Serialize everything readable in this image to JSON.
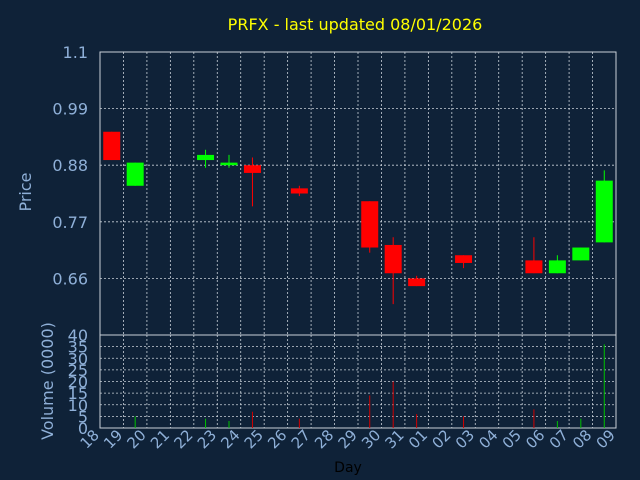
{
  "colors": {
    "background": "#0f2238",
    "title": "#ffff00",
    "axis_text": "#8fb0d8",
    "x_label": "#000000",
    "grid": "#c8d0d8",
    "up": "#00ff00",
    "down": "#ff0000",
    "volume_up": "#00c000",
    "volume_down": "#d00000"
  },
  "chart_data": {
    "type": "candlestick",
    "title": "PRFX - last updated 08/01/2026",
    "xlabel": "Day",
    "price_ylabel": "Price",
    "volume_ylabel": "Volume (0000)",
    "price_ylim": [
      0.55,
      1.1
    ],
    "price_ticks": [
      "1.1",
      "0.99",
      "0.88",
      "0.77",
      "0.66"
    ],
    "price_tick_values": [
      1.1,
      0.99,
      0.88,
      0.77,
      0.66
    ],
    "volume_ylim": [
      0,
      40
    ],
    "volume_ticks": [
      "40",
      "35",
      "30",
      "25",
      "20",
      "15",
      "10",
      "5",
      "0"
    ],
    "volume_tick_values": [
      40,
      35,
      30,
      25,
      20,
      15,
      10,
      5,
      0
    ],
    "x_ticks": [
      "18",
      "19",
      "20",
      "21",
      "22",
      "23",
      "24",
      "25",
      "26",
      "27",
      "28",
      "29",
      "30",
      "31",
      "01",
      "02",
      "03",
      "04",
      "05",
      "06",
      "07",
      "08",
      "09"
    ],
    "grid": true,
    "candles": [
      {
        "day": "18",
        "open": 0.945,
        "high": 0.945,
        "low": 0.89,
        "close": 0.89,
        "volume": 0
      },
      {
        "day": "19",
        "open": 0.84,
        "high": 0.885,
        "low": 0.84,
        "close": 0.885,
        "volume": 5
      },
      {
        "day": "22",
        "open": 0.89,
        "high": 0.91,
        "low": 0.875,
        "close": 0.9,
        "volume": 4
      },
      {
        "day": "23",
        "open": 0.88,
        "high": 0.9,
        "low": 0.875,
        "close": 0.885,
        "volume": 3
      },
      {
        "day": "24",
        "open": 0.88,
        "high": 0.895,
        "low": 0.8,
        "close": 0.865,
        "volume": 7
      },
      {
        "day": "26",
        "open": 0.835,
        "high": 0.84,
        "low": 0.82,
        "close": 0.825,
        "volume": 4
      },
      {
        "day": "29",
        "open": 0.81,
        "high": 0.81,
        "low": 0.71,
        "close": 0.72,
        "volume": 14
      },
      {
        "day": "30",
        "open": 0.725,
        "high": 0.74,
        "low": 0.61,
        "close": 0.67,
        "volume": 20
      },
      {
        "day": "31",
        "open": 0.66,
        "high": 0.665,
        "low": 0.645,
        "close": 0.645,
        "volume": 6
      },
      {
        "day": "02",
        "open": 0.705,
        "high": 0.705,
        "low": 0.68,
        "close": 0.69,
        "volume": 5
      },
      {
        "day": "05",
        "open": 0.695,
        "high": 0.74,
        "low": 0.67,
        "close": 0.67,
        "volume": 8
      },
      {
        "day": "06",
        "open": 0.67,
        "high": 0.705,
        "low": 0.67,
        "close": 0.695,
        "volume": 3
      },
      {
        "day": "07",
        "open": 0.695,
        "high": 0.72,
        "low": 0.695,
        "close": 0.72,
        "volume": 4
      },
      {
        "day": "08",
        "open": 0.73,
        "high": 0.87,
        "low": 0.73,
        "close": 0.85,
        "volume": 36
      }
    ]
  }
}
